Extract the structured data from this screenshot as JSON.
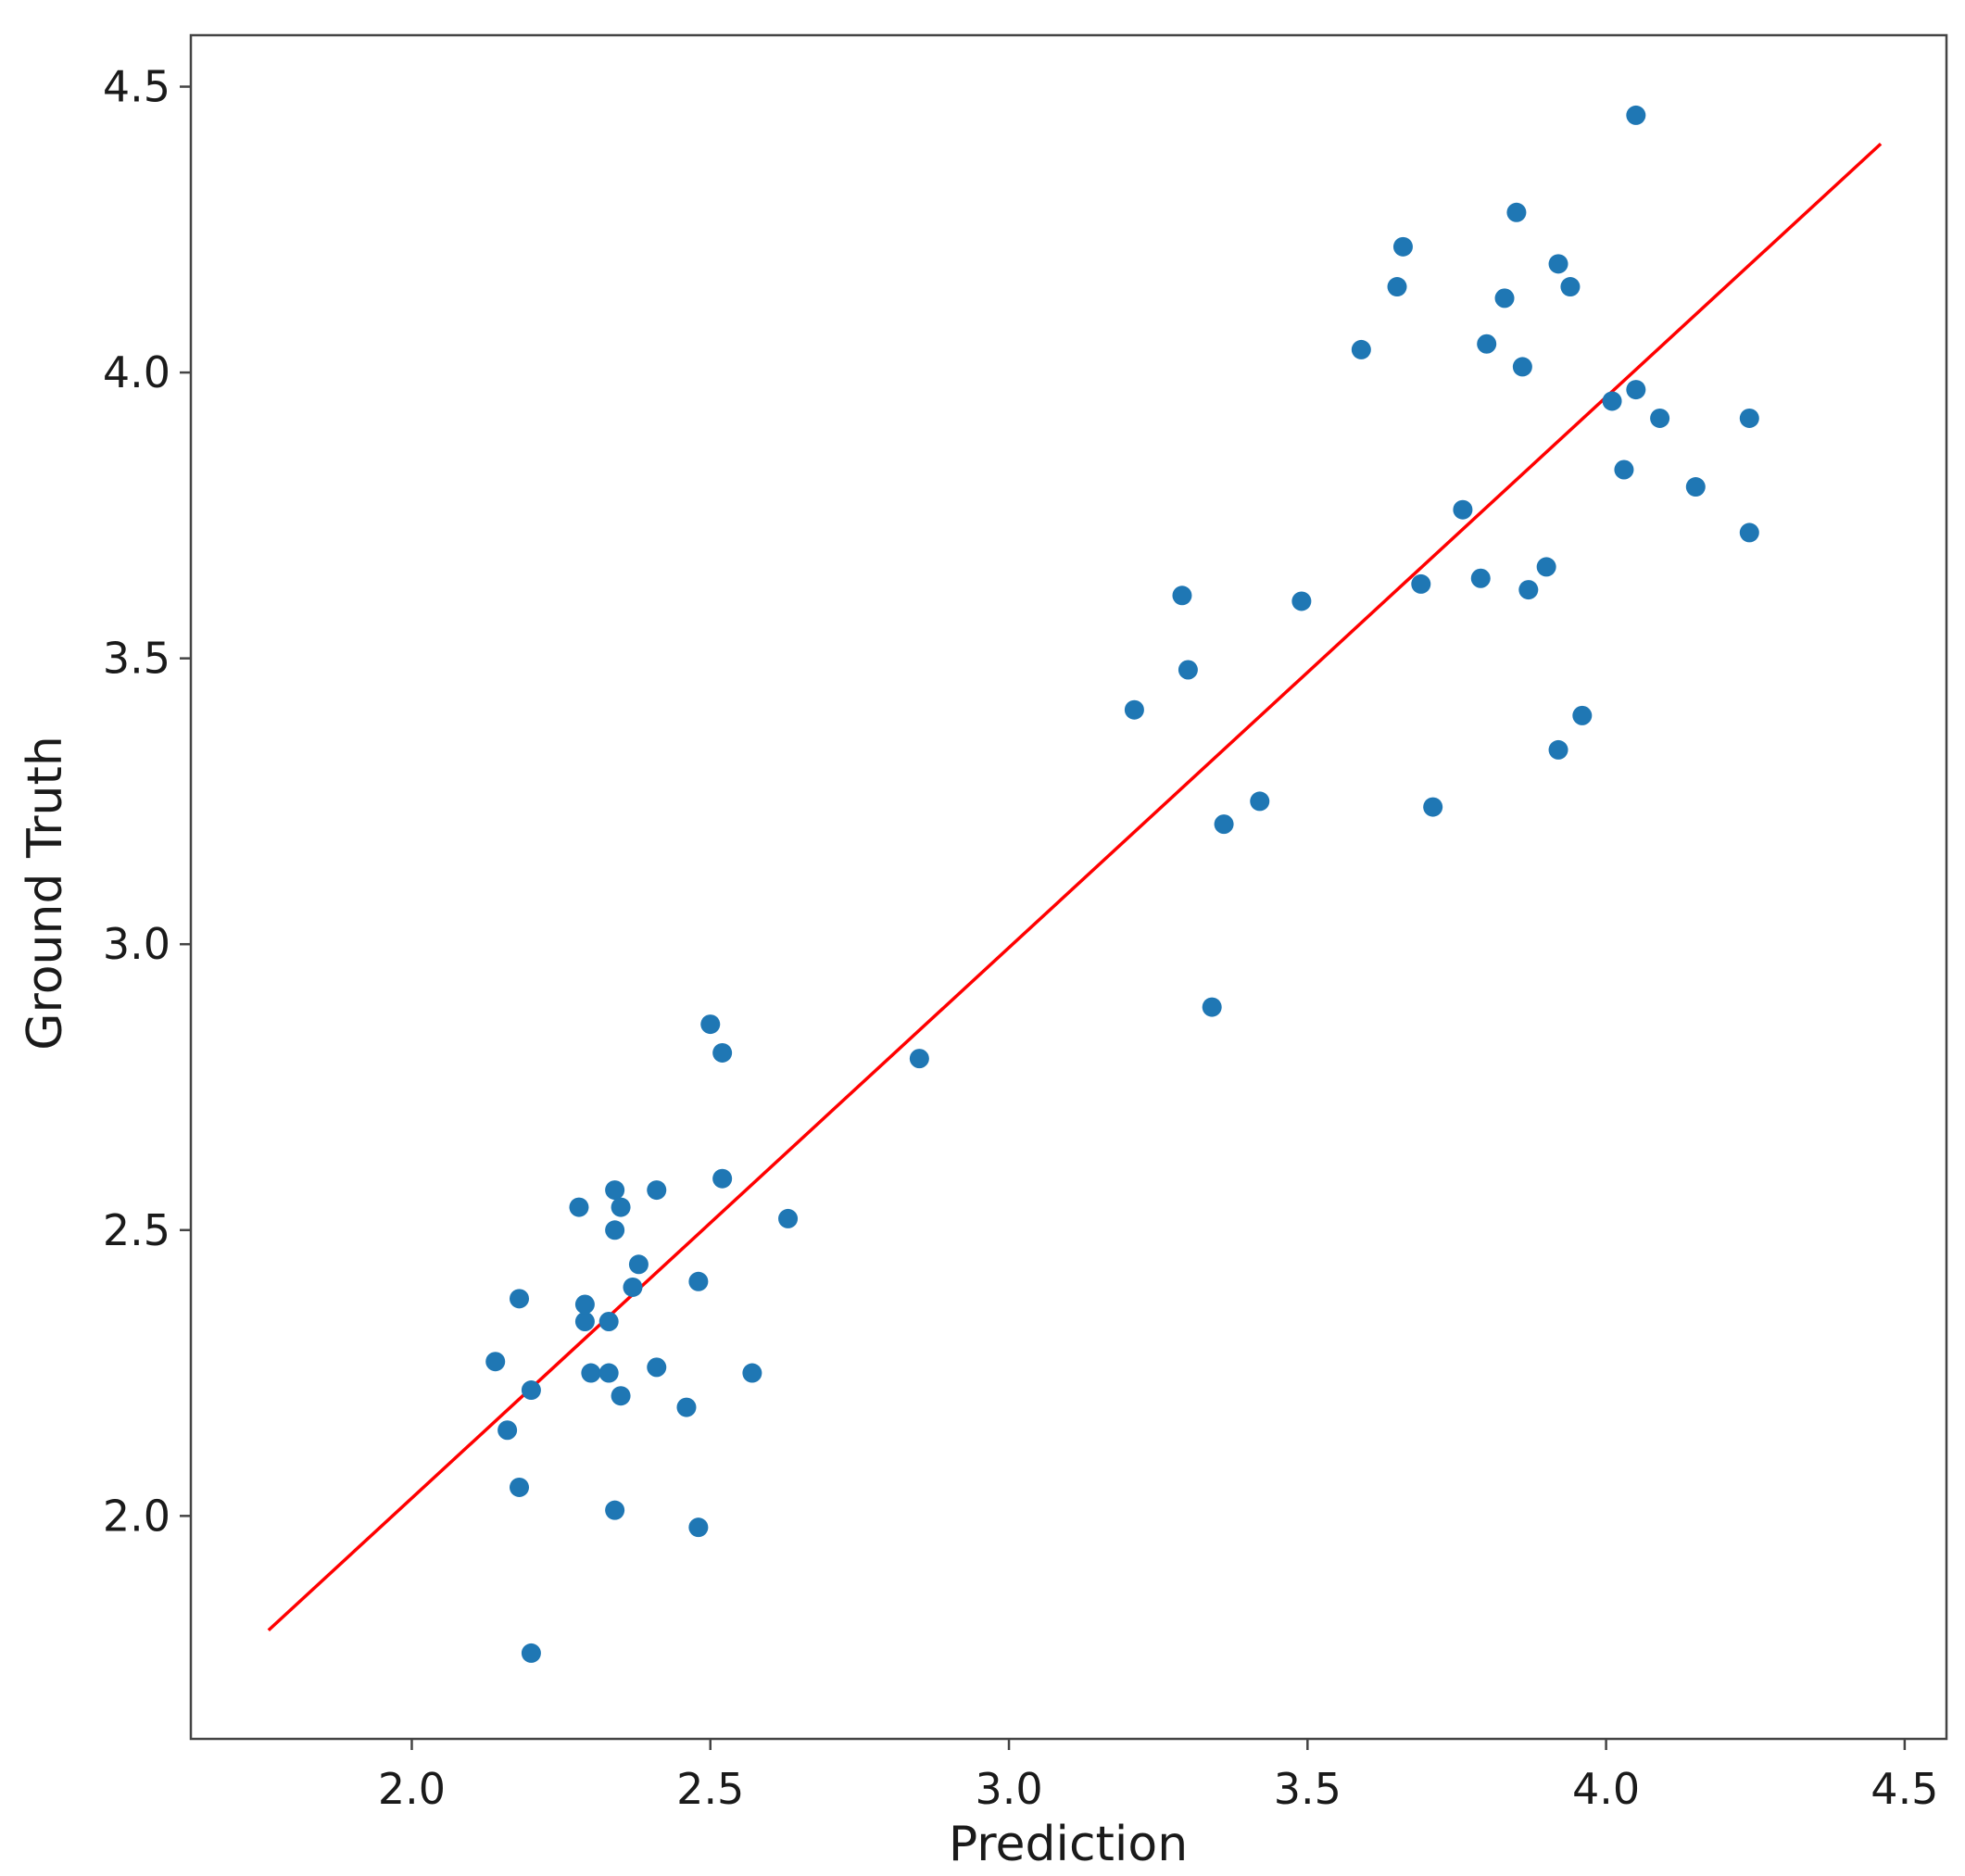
{
  "chart_data": {
    "type": "scatter",
    "title": "",
    "xlabel": "Prediction",
    "ylabel": "Ground Truth",
    "xlim": [
      1.63,
      4.57
    ],
    "ylim": [
      1.61,
      4.59
    ],
    "x_ticks": [
      "2.0",
      "2.5",
      "3.0",
      "3.5",
      "4.0",
      "4.5"
    ],
    "y_ticks": [
      "2.0",
      "2.5",
      "3.0",
      "3.5",
      "4.0",
      "4.5"
    ],
    "grid": false,
    "legend": "none",
    "point_color": "#1f77b4",
    "line_color": "#ff0000",
    "fit_line": {
      "x": [
        1.76,
        4.46
      ],
      "y": [
        1.8,
        4.4
      ]
    },
    "points": [
      {
        "x": 2.14,
        "y": 2.27
      },
      {
        "x": 2.16,
        "y": 2.15
      },
      {
        "x": 2.18,
        "y": 2.38
      },
      {
        "x": 2.18,
        "y": 2.05
      },
      {
        "x": 2.2,
        "y": 2.22
      },
      {
        "x": 2.2,
        "y": 1.76
      },
      {
        "x": 2.28,
        "y": 2.54
      },
      {
        "x": 2.29,
        "y": 2.34
      },
      {
        "x": 2.29,
        "y": 2.37
      },
      {
        "x": 2.3,
        "y": 2.25
      },
      {
        "x": 2.33,
        "y": 2.25
      },
      {
        "x": 2.33,
        "y": 2.34
      },
      {
        "x": 2.34,
        "y": 2.5
      },
      {
        "x": 2.34,
        "y": 2.57
      },
      {
        "x": 2.35,
        "y": 2.54
      },
      {
        "x": 2.35,
        "y": 2.21
      },
      {
        "x": 2.34,
        "y": 2.01
      },
      {
        "x": 2.37,
        "y": 2.4
      },
      {
        "x": 2.38,
        "y": 2.44
      },
      {
        "x": 2.41,
        "y": 2.26
      },
      {
        "x": 2.41,
        "y": 2.57
      },
      {
        "x": 2.46,
        "y": 2.19
      },
      {
        "x": 2.48,
        "y": 2.41
      },
      {
        "x": 2.48,
        "y": 1.98
      },
      {
        "x": 2.5,
        "y": 2.86
      },
      {
        "x": 2.52,
        "y": 2.81
      },
      {
        "x": 2.52,
        "y": 2.59
      },
      {
        "x": 2.57,
        "y": 2.25
      },
      {
        "x": 2.63,
        "y": 2.52
      },
      {
        "x": 2.85,
        "y": 2.8
      },
      {
        "x": 3.21,
        "y": 3.41
      },
      {
        "x": 3.29,
        "y": 3.61
      },
      {
        "x": 3.3,
        "y": 3.48
      },
      {
        "x": 3.34,
        "y": 2.89
      },
      {
        "x": 3.36,
        "y": 3.21
      },
      {
        "x": 3.42,
        "y": 3.25
      },
      {
        "x": 3.49,
        "y": 3.6
      },
      {
        "x": 3.59,
        "y": 4.04
      },
      {
        "x": 3.65,
        "y": 4.15
      },
      {
        "x": 3.66,
        "y": 4.22
      },
      {
        "x": 3.69,
        "y": 3.63
      },
      {
        "x": 3.71,
        "y": 3.24
      },
      {
        "x": 3.76,
        "y": 3.76
      },
      {
        "x": 3.79,
        "y": 3.64
      },
      {
        "x": 3.8,
        "y": 4.05
      },
      {
        "x": 3.83,
        "y": 4.13
      },
      {
        "x": 3.85,
        "y": 4.28
      },
      {
        "x": 3.86,
        "y": 4.01
      },
      {
        "x": 3.87,
        "y": 3.62
      },
      {
        "x": 3.9,
        "y": 3.66
      },
      {
        "x": 3.92,
        "y": 4.19
      },
      {
        "x": 3.92,
        "y": 3.34
      },
      {
        "x": 3.94,
        "y": 4.15
      },
      {
        "x": 3.96,
        "y": 3.4
      },
      {
        "x": 4.01,
        "y": 3.95
      },
      {
        "x": 4.03,
        "y": 3.83
      },
      {
        "x": 4.05,
        "y": 3.97
      },
      {
        "x": 4.05,
        "y": 4.45
      },
      {
        "x": 4.09,
        "y": 3.92
      },
      {
        "x": 4.15,
        "y": 3.8
      },
      {
        "x": 4.24,
        "y": 3.72
      },
      {
        "x": 4.24,
        "y": 3.92
      }
    ]
  }
}
